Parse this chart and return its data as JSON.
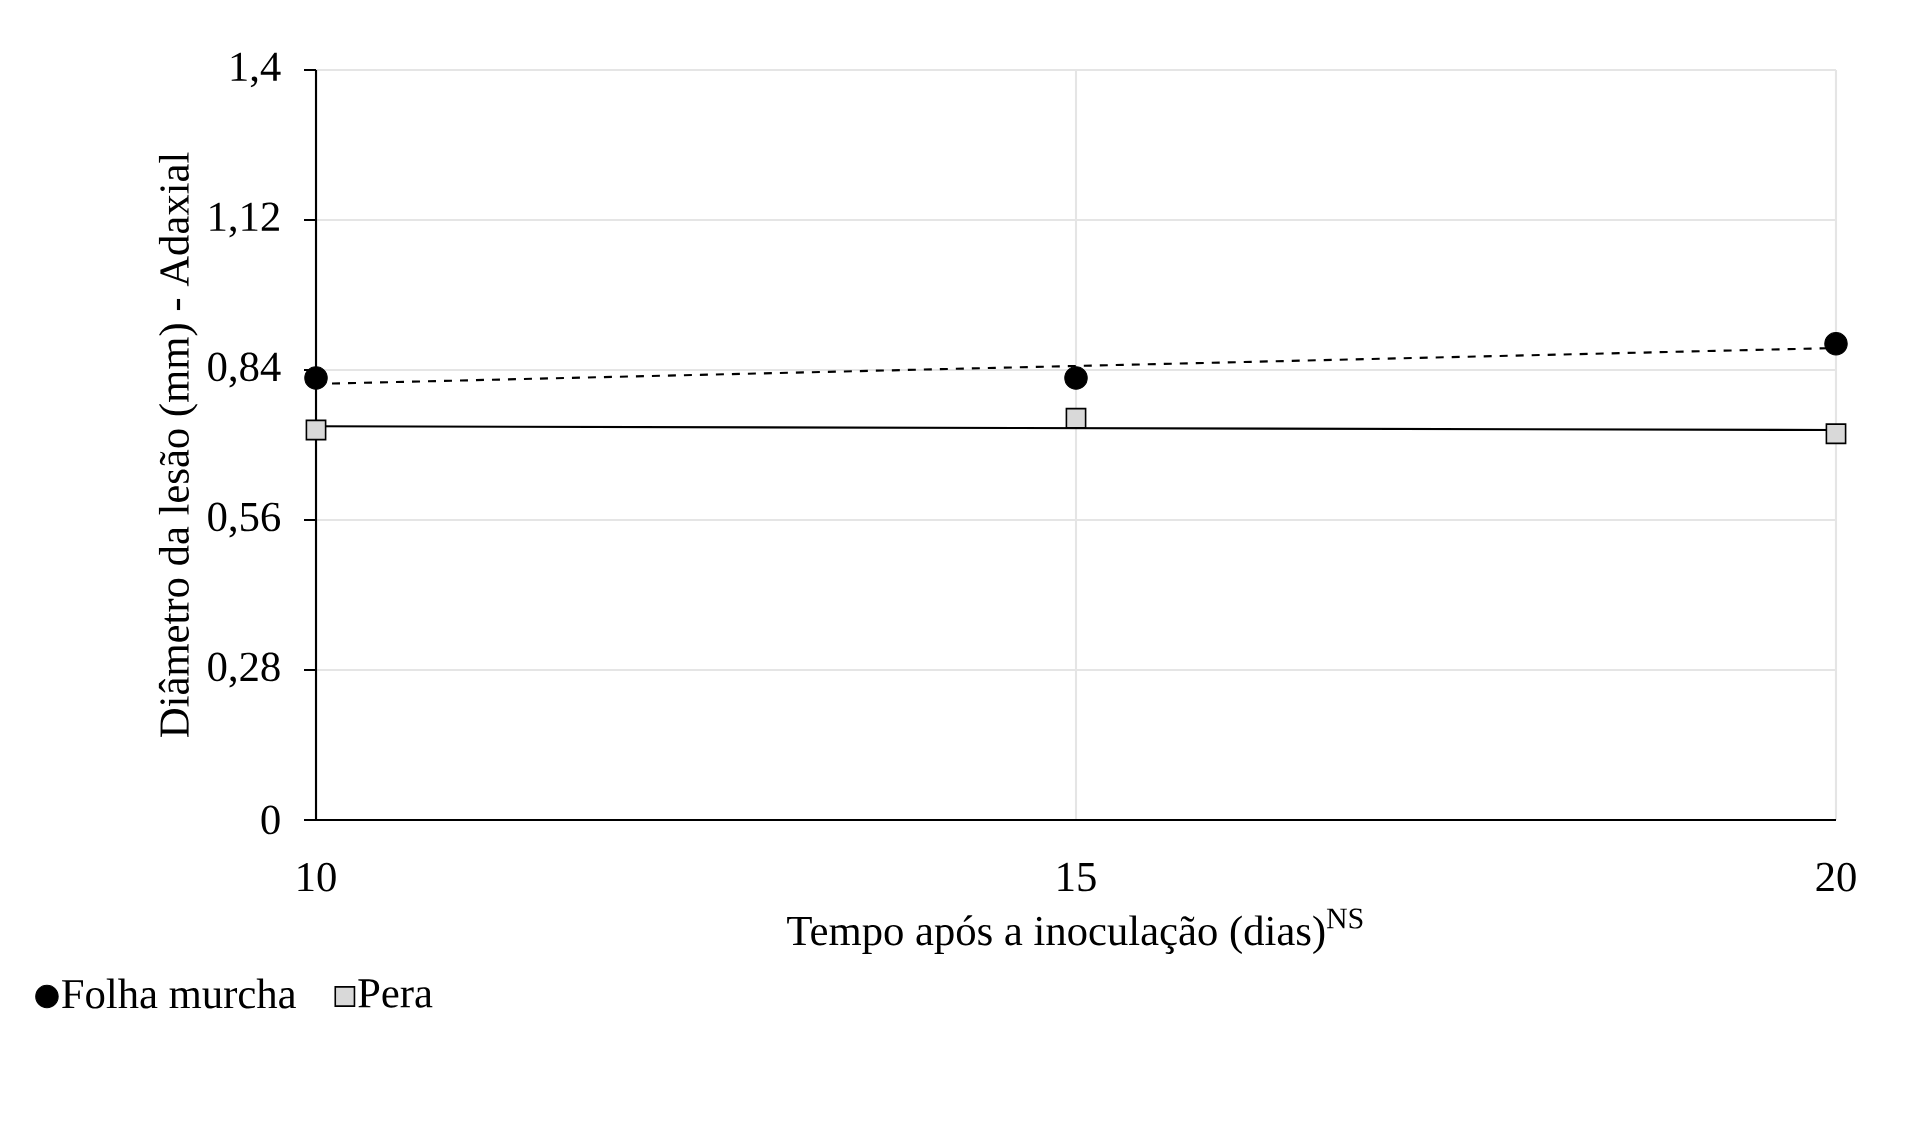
{
  "chart_data": {
    "type": "scatter",
    "xlabel": "Tempo após a inoculação (dias)$^{NS}$",
    "ylabel": "Diâmetro da lesão (mm) - Adaxial",
    "xlim": [
      10,
      20
    ],
    "xticks": [
      10,
      15,
      20
    ],
    "ylim": [
      0,
      1.4
    ],
    "yticks": [
      0,
      {
        "value": 0.28,
        "label": "0,28"
      },
      {
        "value": 0.56,
        "label": "0,56"
      },
      {
        "value": 0.84,
        "label": "0,84"
      },
      {
        "value": 1.12,
        "label": "1,12"
      },
      {
        "value": 1.4,
        "label": "1,4"
      }
    ],
    "grid": true,
    "legend": "bottom left",
    "series": [
      {
        "name": "Folha murcha",
        "marker": "circle",
        "color": "#000000",
        "x": [
          10,
          15,
          20
        ],
        "values": [
          0.825,
          0.825,
          0.889
        ]
      },
      {
        "name": "Pera",
        "marker": "square",
        "color": "#d9d9d9",
        "x": [
          10,
          15,
          20
        ],
        "values": [
          0.728,
          0.75,
          0.721
        ]
      },
      {
        "type": "line",
        "line_style": "dashed",
        "color": "#000000",
        "x": [
          10,
          20
        ],
        "values": [
          0.814,
          0.881
        ]
      },
      {
        "type": "line",
        "line_style": "solid",
        "color": "#000000",
        "x": [
          10,
          20
        ],
        "values": [
          0.735,
          0.728
        ]
      }
    ]
  }
}
